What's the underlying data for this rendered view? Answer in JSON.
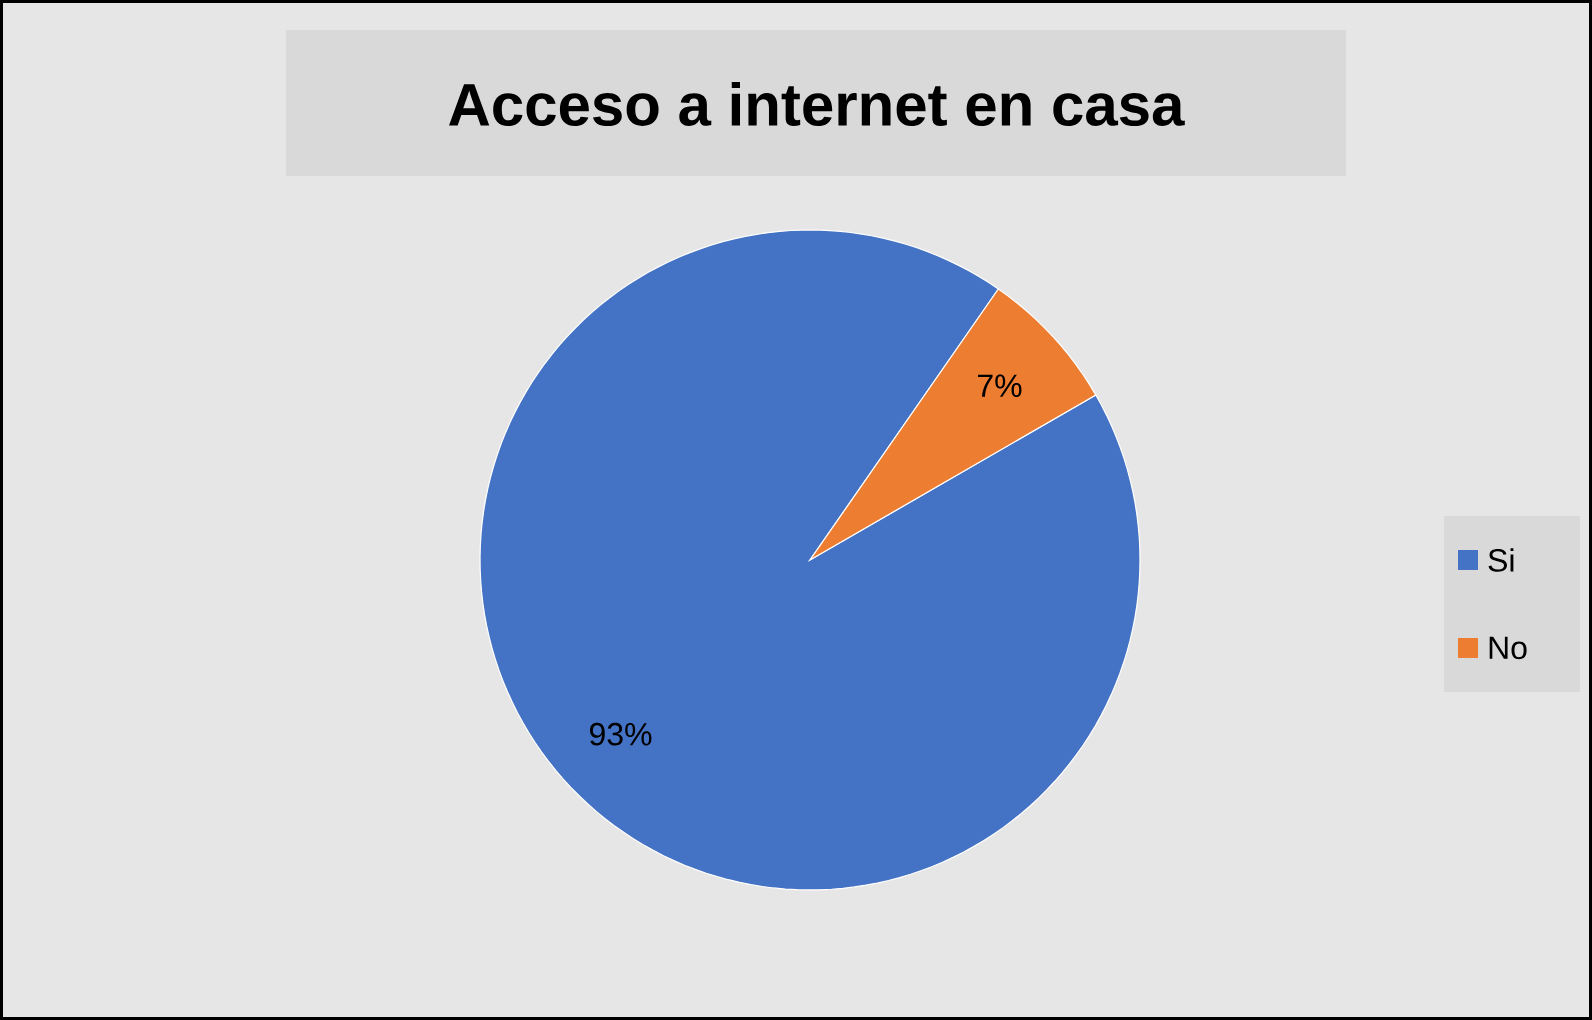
{
  "chart_data": {
    "type": "pie",
    "title": "Acceso a internet en casa",
    "categories": [
      "Si",
      "No"
    ],
    "values": [
      93,
      7
    ],
    "colors": [
      "#4472c4",
      "#ed7d31"
    ],
    "value_labels": [
      "93%",
      "7%"
    ],
    "legend": "right"
  }
}
